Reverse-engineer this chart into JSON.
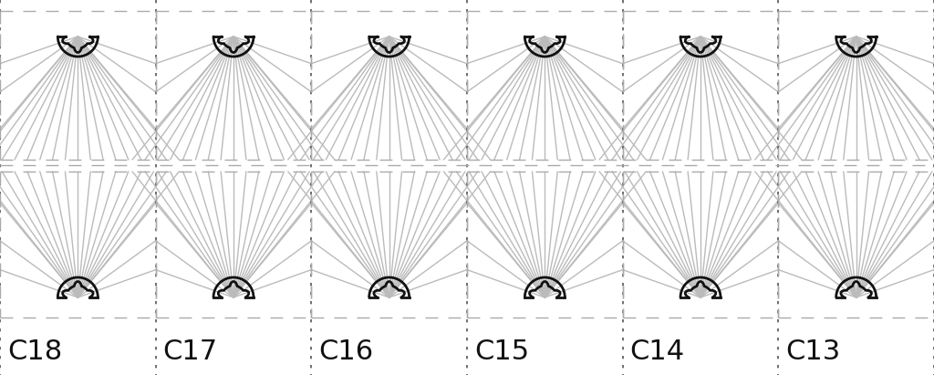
{
  "fig_width": 10.24,
  "fig_height": 4.11,
  "dpi": 100,
  "background_color": "#ffffff",
  "bay_labels": [
    "C18",
    "C17",
    "C16",
    "C15",
    "C14",
    "C13"
  ],
  "n_bays": 6,
  "rib_color": "#bbbbbb",
  "boss_color": "#111111",
  "dash_color": "#aaaaaa",
  "dot_color": "#555555",
  "label_fontsize": 22,
  "label_color": "#111111",
  "n_ribs": 16,
  "boss_outer_r": 0.038,
  "boss_inner_r": 0.022,
  "boss_bump_n": 5,
  "boss_lw": 2.0,
  "rib_lw": 1.0
}
